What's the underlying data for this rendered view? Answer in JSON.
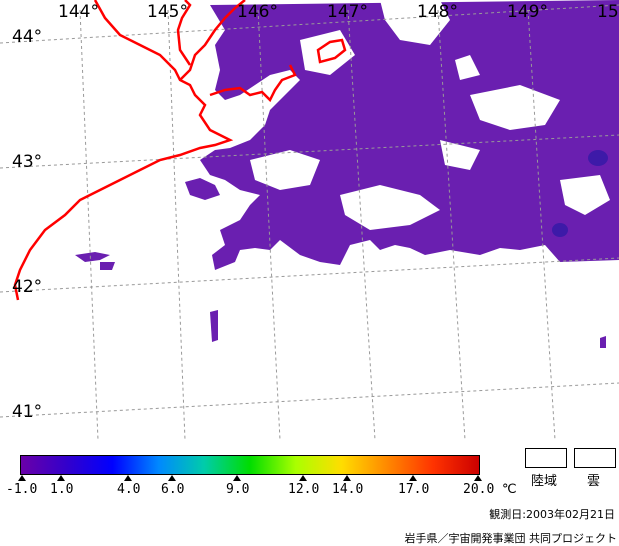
{
  "map": {
    "longitudes": [
      "144°",
      "145°",
      "146°",
      "147°",
      "148°",
      "149°",
      "15"
    ],
    "latitudes": [
      "44°",
      "43°",
      "42°",
      "41°"
    ]
  },
  "colorbar": {
    "labels": [
      "-1.0",
      "1.0",
      "4.0",
      "6.0",
      "9.0",
      "12.0",
      "14.0",
      "17.0",
      "20.0"
    ],
    "unit": "℃",
    "colors": [
      "#6a00a8",
      "#3300cc",
      "#0000ff",
      "#0088ff",
      "#00ccaa",
      "#00dd00",
      "#aaff00",
      "#ffdd00",
      "#ff8800",
      "#ff3300",
      "#cc0000"
    ]
  },
  "legend": {
    "land_label": "陸域",
    "cloud_label": "雲"
  },
  "footer": {
    "observation_date": "観測日:2003年02月21日",
    "credit": "岩手県／宇宙開発事業団 共同プロジェクト"
  },
  "styles": {
    "sst_color": "#6a1fb0",
    "sst_dark": "#3d1aa8",
    "coast_color": "#ff0000",
    "grid_color": "#999999"
  }
}
